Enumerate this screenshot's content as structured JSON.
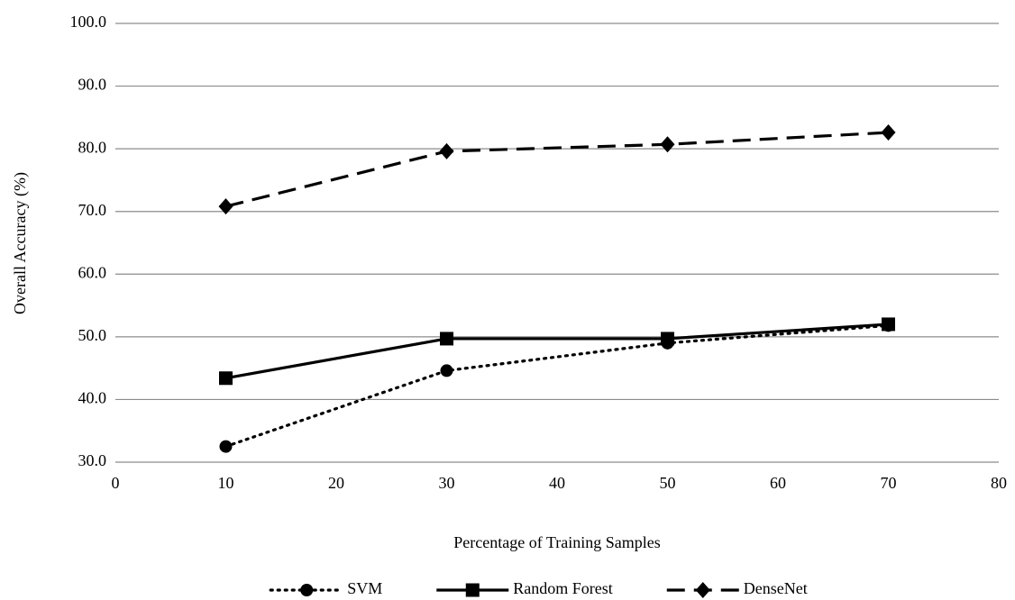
{
  "chart_data": {
    "type": "line",
    "x_label": "Percentage of Training Samples",
    "y_label": "Overall Accuracy (%)",
    "xlim": [
      0,
      80
    ],
    "xticks": [
      0,
      10,
      20,
      30,
      40,
      50,
      60,
      70,
      80
    ],
    "ylim": [
      30,
      100
    ],
    "yticks": [
      {
        "value": 30,
        "label": "30.0"
      },
      {
        "value": 40,
        "label": "40.0"
      },
      {
        "value": 50,
        "label": "50.0"
      },
      {
        "value": 60,
        "label": "60.0"
      },
      {
        "value": 70,
        "label": "70.0"
      },
      {
        "value": 80,
        "label": "80.0"
      },
      {
        "value": 90,
        "label": "90.0"
      },
      {
        "value": 100,
        "label": "100.0"
      }
    ],
    "grid": true,
    "legend": "bottom",
    "x": [
      10,
      30,
      50,
      70
    ],
    "series": [
      {
        "name": "SVM",
        "color": "#000000",
        "dash": "dot",
        "marker": "circle",
        "values": [
          32.5,
          44.6,
          49.0,
          51.8
        ]
      },
      {
        "name": "Random Forest",
        "color": "#000000",
        "dash": "solid",
        "marker": "square",
        "values": [
          43.4,
          49.7,
          49.7,
          52.0
        ]
      },
      {
        "name": "DenseNet",
        "color": "#000000",
        "dash": "dash",
        "marker": "diamond",
        "values": [
          70.8,
          79.6,
          80.7,
          82.6
        ]
      }
    ]
  }
}
